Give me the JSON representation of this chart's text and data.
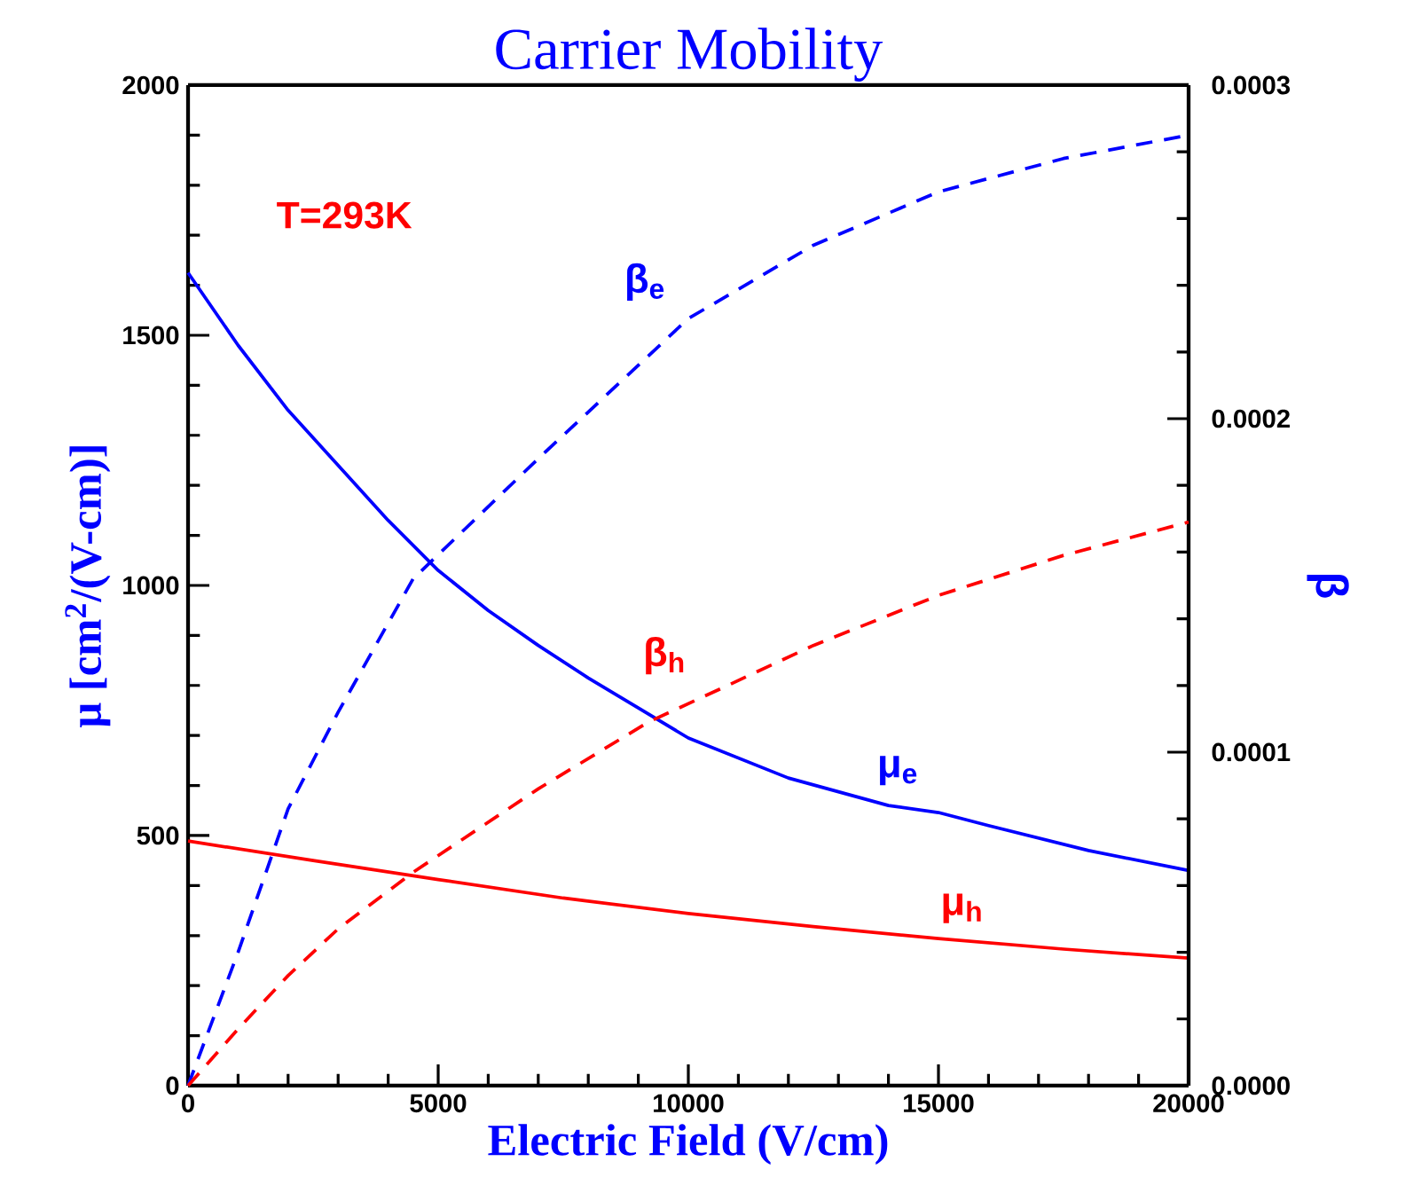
{
  "chart_data": {
    "type": "line",
    "title": "Carrier Mobility",
    "xlabel": "Electric Field (V/cm)",
    "ylabel": "μ [cm$^{2}$/(V-cm)]",
    "y2label": "β",
    "annotations": [
      "T=293K"
    ],
    "xlim": [
      0,
      20000
    ],
    "ylim": [
      0,
      2000
    ],
    "y2lim": [
      0,
      0.0003
    ],
    "xticks": [
      0,
      5000,
      10000,
      15000,
      20000
    ],
    "yticks": [
      0,
      500,
      1000,
      1500,
      2000
    ],
    "y2ticks": [
      {
        "value": 0,
        "label": "0.0000"
      },
      {
        "value": 0.0001,
        "label": "0.0001"
      },
      {
        "value": 0.0002,
        "label": "0.0002"
      },
      {
        "value": 0.0003,
        "label": "0.0003"
      }
    ],
    "series": [
      {
        "name": "μ$_{e}$",
        "color": "#0000ff",
        "line_style": "solid",
        "x": [
          0,
          1000,
          2000,
          3000,
          4000,
          5000,
          6000,
          7000,
          8000,
          9000,
          10000,
          12000,
          14000,
          15000,
          16000,
          18000,
          20000
        ],
        "values": [
          1625,
          1480,
          1350,
          1240,
          1130,
          1030,
          950,
          880,
          815,
          755,
          695,
          615,
          560,
          546,
          520,
          470,
          430
        ]
      },
      {
        "name": "μ$_{h}$",
        "color": "#ff0000",
        "line_style": "solid",
        "x": [
          0,
          2500,
          5000,
          7500,
          10000,
          12500,
          15000,
          17500,
          20000
        ],
        "values": [
          489,
          450,
          412,
          375,
          344,
          318,
          294,
          273,
          255
        ]
      },
      {
        "name": "β$_{e}$",
        "color": "#0000ff",
        "line_style": "dashed",
        "axis": "y2",
        "x": [
          0,
          1000,
          2000,
          3000,
          4500,
          7000,
          10000,
          12500,
          15000,
          17500,
          20000
        ],
        "values": [
          0,
          4e-05,
          8.3e-05,
          0.000112,
          0.000152,
          0.000188,
          0.00023,
          0.000252,
          0.000268,
          0.000278,
          0.000285
        ]
      },
      {
        "name": "β$_{h}$",
        "color": "#ff0000",
        "line_style": "dashed",
        "axis": "y2",
        "x": [
          0,
          1000,
          2000,
          3000,
          4500,
          7000,
          9200,
          10500,
          12500,
          15000,
          17500,
          20000
        ],
        "values": [
          0,
          1.7e-05,
          3.3e-05,
          4.7e-05,
          6.4e-05,
          8.9e-05,
          0.000109,
          0.000118,
          0.000132,
          0.000147,
          0.000159,
          0.000169
        ]
      }
    ]
  }
}
